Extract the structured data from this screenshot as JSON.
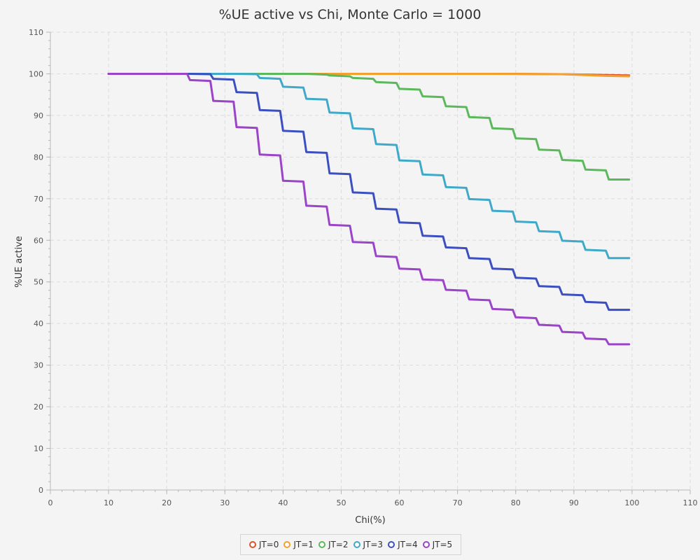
{
  "chart_data": {
    "type": "line",
    "title": "%UE active vs Chi, Monte Carlo = 1000",
    "xlabel": "Chi(%)",
    "ylabel": "%UE active",
    "xlim": [
      0,
      110
    ],
    "ylim": [
      0,
      110
    ],
    "xticks": [
      0,
      10,
      20,
      30,
      40,
      50,
      60,
      70,
      80,
      90,
      100,
      110
    ],
    "yticks": [
      0,
      10,
      20,
      30,
      40,
      50,
      60,
      70,
      80,
      90,
      100,
      110
    ],
    "grid": true,
    "legend_position": "bottom",
    "series": [
      {
        "name": "JT=0",
        "color": "#d9542b",
        "x": [
          10,
          80,
          88,
          92,
          96,
          99.5
        ],
        "y": [
          100,
          100,
          99.9,
          99.8,
          99.7,
          99.6
        ]
      },
      {
        "name": "JT=1",
        "color": "#f2a12e",
        "x": [
          10,
          52,
          76,
          88,
          92,
          95.5,
          99.5
        ],
        "y": [
          100,
          100,
          100,
          99.9,
          99.7,
          99.5,
          99.4
        ]
      },
      {
        "name": "JT=2",
        "color": "#5cb85c",
        "x": [
          10,
          40,
          44,
          47.5,
          48,
          51.5,
          52,
          55.5,
          56,
          59.5,
          60,
          63.5,
          64,
          67.5,
          68,
          71.5,
          72,
          75.5,
          76,
          79.5,
          80,
          83.5,
          84,
          87.5,
          88,
          91.5,
          92,
          95.5,
          96,
          99.5
        ],
        "y": [
          100,
          100,
          100,
          99.8,
          99.6,
          99.4,
          99.0,
          98.8,
          98.0,
          97.8,
          96.4,
          96.2,
          94.6,
          94.4,
          92.2,
          92.0,
          89.6,
          89.4,
          86.9,
          86.7,
          84.5,
          84.3,
          81.8,
          81.6,
          79.3,
          79.1,
          77.0,
          76.8,
          74.6,
          74.6
        ]
      },
      {
        "name": "JT=3",
        "color": "#3fa9c9",
        "x": [
          10,
          32,
          35.5,
          36,
          39.5,
          40,
          43.5,
          44,
          47.5,
          48,
          51.5,
          52,
          55.5,
          56,
          59.5,
          60,
          63.5,
          64,
          67.5,
          68,
          71.5,
          72,
          75.5,
          76,
          79.5,
          80,
          83.5,
          84,
          87.5,
          88,
          91.5,
          92,
          95.5,
          96,
          99.5
        ],
        "y": [
          100,
          100,
          99.9,
          99.0,
          98.8,
          96.9,
          96.7,
          94.0,
          93.8,
          90.7,
          90.5,
          86.9,
          86.7,
          83.1,
          82.9,
          79.2,
          79.0,
          75.8,
          75.6,
          72.8,
          72.6,
          69.9,
          69.7,
          67.1,
          66.9,
          64.5,
          64.3,
          62.2,
          62.0,
          59.9,
          59.7,
          57.7,
          57.5,
          55.7,
          55.7
        ]
      },
      {
        "name": "JT=4",
        "color": "#3b4fc0",
        "x": [
          10,
          24,
          27.5,
          28,
          31.5,
          32,
          35.5,
          36,
          39.5,
          40,
          43.5,
          44,
          47.5,
          48,
          51.5,
          52,
          55.5,
          56,
          59.5,
          60,
          63.5,
          64,
          67.5,
          68,
          71.5,
          72,
          75.5,
          76,
          79.5,
          80,
          83.5,
          84,
          87.5,
          88,
          91.5,
          92,
          95.5,
          96,
          99.5
        ],
        "y": [
          100,
          100,
          99.9,
          98.8,
          98.6,
          95.6,
          95.4,
          91.3,
          91.1,
          86.3,
          86.1,
          81.2,
          81.0,
          76.1,
          75.9,
          71.5,
          71.3,
          67.6,
          67.4,
          64.3,
          64.1,
          61.1,
          60.9,
          58.3,
          58.1,
          55.7,
          55.5,
          53.2,
          53.0,
          51.0,
          50.8,
          49.0,
          48.8,
          47.0,
          46.8,
          45.2,
          45.0,
          43.3,
          43.3
        ]
      },
      {
        "name": "JT=5",
        "color": "#9b44c8",
        "x": [
          10,
          23.5,
          24,
          27.5,
          28,
          31.5,
          32,
          35.5,
          36,
          39.5,
          40,
          43.5,
          44,
          47.5,
          48,
          51.5,
          52,
          55.5,
          56,
          59.5,
          60,
          63.5,
          64,
          67.5,
          68,
          71.5,
          72,
          75.5,
          76,
          79.5,
          80,
          83.5,
          84,
          87.5,
          88,
          91.5,
          92,
          95.5,
          96,
          99.5
        ],
        "y": [
          100,
          100,
          98.5,
          98.3,
          93.5,
          93.3,
          87.2,
          87.0,
          80.6,
          80.4,
          74.3,
          74.1,
          68.3,
          68.1,
          63.7,
          63.5,
          59.6,
          59.4,
          56.2,
          56.0,
          53.2,
          53.0,
          50.6,
          50.4,
          48.1,
          47.9,
          45.8,
          45.6,
          43.5,
          43.3,
          41.5,
          41.3,
          39.7,
          39.5,
          38.0,
          37.8,
          36.4,
          36.2,
          35.0,
          35.0
        ]
      }
    ]
  }
}
